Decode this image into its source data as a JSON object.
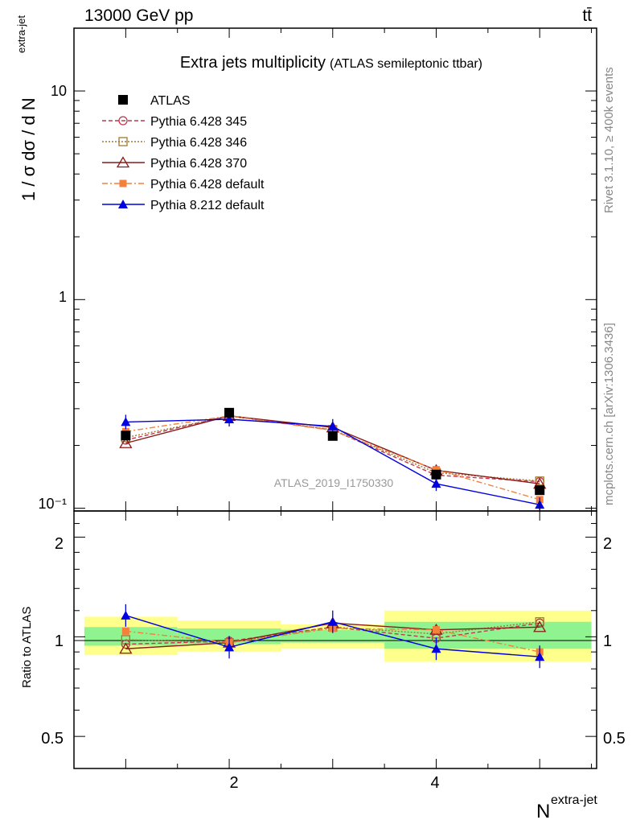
{
  "header": {
    "energy_label": "13000 GeV pp",
    "process_label": "tt̄"
  },
  "side": {
    "rivet_label": "Rivet 3.1.10, ≥ 400k events",
    "mcplots_label": "mcplots.cern.ch [arXiv:1306.3436]"
  },
  "chart_data": [
    {
      "type": "line",
      "panel": "main",
      "title": "Extra jets multiplicity",
      "subtitle": "(ATLAS semileptonic ttbar)",
      "ylabel": "1 / σ dσ / d N",
      "ylabel_sup": "extra-jet",
      "yscale": "log",
      "ylim": [
        0.097,
        20
      ],
      "xlim": [
        0.5,
        5.55
      ],
      "ytick_labels": [
        "10",
        "1",
        "10⁻¹"
      ],
      "ytick_values": [
        10,
        1,
        0.1
      ],
      "watermark": "ATLAS_2019_I1750330",
      "legend_position": "top-left",
      "x": [
        1,
        2,
        3,
        4,
        5
      ],
      "series": [
        {
          "name": "ATLAS",
          "values": [
            0.223,
            0.287,
            0.222,
            0.145,
            0.122
          ],
          "color": "#000000",
          "marker": "square"
        },
        {
          "name": "Pythia 6.428 345",
          "values": [
            0.212,
            0.278,
            0.237,
            0.144,
            0.134
          ],
          "color": "#c0374f",
          "marker": "circle-open"
        },
        {
          "name": "Pythia 6.428 346",
          "values": [
            0.218,
            0.276,
            0.238,
            0.148,
            0.135
          ],
          "color": "#a07830",
          "marker": "square-open"
        },
        {
          "name": "Pythia 6.428 370",
          "values": [
            0.205,
            0.277,
            0.244,
            0.152,
            0.131
          ],
          "color": "#8b1a1a",
          "marker": "triangle-open"
        },
        {
          "name": "Pythia 6.428 default",
          "values": [
            0.233,
            0.277,
            0.236,
            0.153,
            0.11
          ],
          "color": "#f5803b",
          "marker": "square-filled"
        },
        {
          "name": "Pythia 8.212 default",
          "values": [
            0.259,
            0.267,
            0.247,
            0.131,
            0.104
          ],
          "color": "#0000e0",
          "marker": "triangle-filled"
        }
      ]
    },
    {
      "type": "line",
      "panel": "ratio",
      "ylabel": "Ratio to ATLAS",
      "xlabel": "N",
      "xlabel_sup": "extra-jet",
      "ylim": [
        0.4,
        2.4
      ],
      "ytick_labels": [
        "2",
        "1",
        "0.5"
      ],
      "ytick_values": [
        2,
        1,
        0.5
      ],
      "xtick_labels": [
        "2",
        "4"
      ],
      "xtick_values": [
        2,
        4
      ],
      "bands": [
        {
          "xlo": 0.6,
          "xhi": 1.5,
          "inner": [
            0.94,
            1.07
          ],
          "outer": [
            0.88,
            1.15
          ]
        },
        {
          "xlo": 1.5,
          "xhi": 2.5,
          "inner": [
            0.95,
            1.06
          ],
          "outer": [
            0.9,
            1.12
          ]
        },
        {
          "xlo": 2.5,
          "xhi": 3.5,
          "inner": [
            0.96,
            1.05
          ],
          "outer": [
            0.92,
            1.09
          ]
        },
        {
          "xlo": 3.5,
          "xhi": 5.5,
          "inner": [
            0.92,
            1.11
          ],
          "outer": [
            0.84,
            1.2
          ]
        }
      ],
      "series": [
        {
          "name": "Pythia 6.428 345",
          "values": [
            0.95,
            0.97,
            1.07,
            0.99,
            1.1
          ]
        },
        {
          "name": "Pythia 6.428 346",
          "values": [
            0.98,
            0.96,
            1.07,
            1.02,
            1.11
          ]
        },
        {
          "name": "Pythia 6.428 370",
          "values": [
            0.92,
            0.96,
            1.1,
            1.05,
            1.07
          ]
        },
        {
          "name": "Pythia 6.428 default",
          "values": [
            1.04,
            0.96,
            1.06,
            1.05,
            0.9
          ]
        },
        {
          "name": "Pythia 8.212 default",
          "values": [
            1.16,
            0.93,
            1.11,
            0.92,
            0.87
          ]
        }
      ]
    }
  ]
}
